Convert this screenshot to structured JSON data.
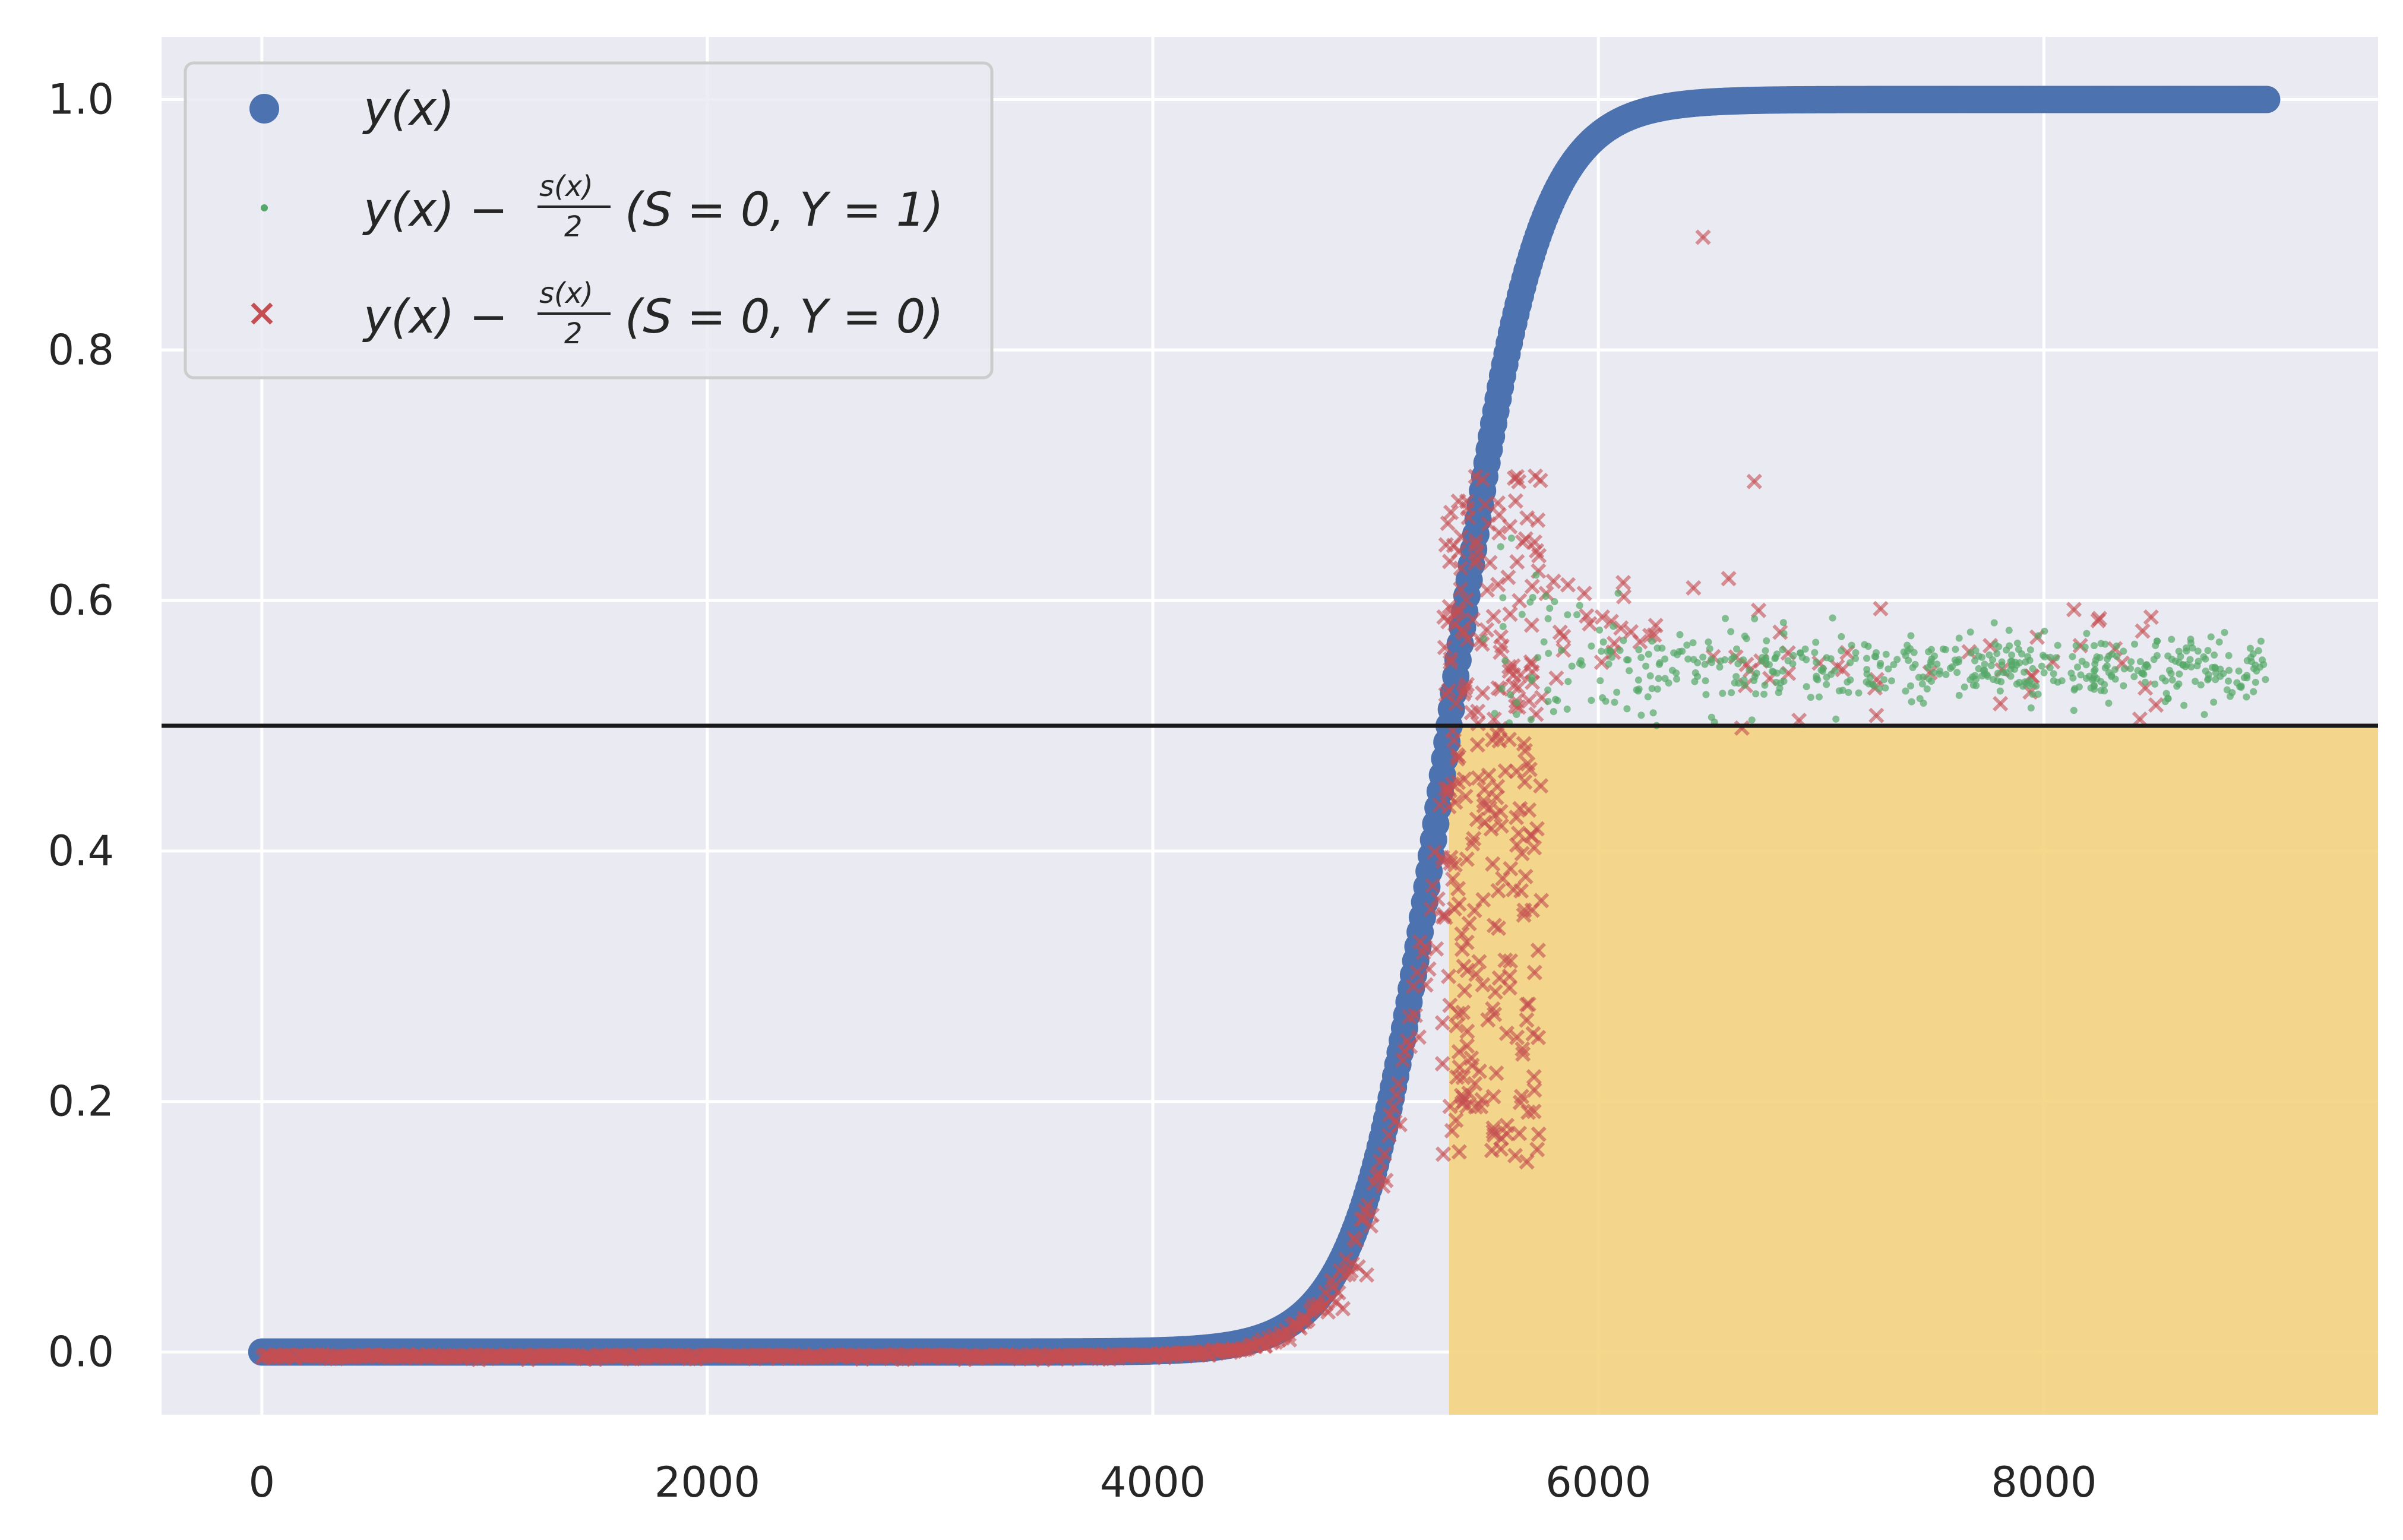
{
  "chart_data": {
    "type": "scatter",
    "title": "",
    "xlabel": "",
    "ylabel": "",
    "xlim": [
      -450,
      9500
    ],
    "ylim": [
      -0.05,
      1.05
    ],
    "x_ticks": [
      0,
      2000,
      4000,
      6000,
      8000
    ],
    "x_tick_labels": [
      "0",
      "2000",
      "4000",
      "6000",
      "8000"
    ],
    "y_ticks": [
      0.0,
      0.2,
      0.4,
      0.6,
      0.8,
      1.0
    ],
    "y_tick_labels": [
      "0.0",
      "0.2",
      "0.4",
      "0.6",
      "0.8",
      "1.0"
    ],
    "grid": true,
    "background": "#eaeaf2",
    "legend_position": "upper-left",
    "threshold_line": {
      "y": 0.5,
      "color": "#1a1a1a"
    },
    "shaded_region": {
      "x_start": 5330,
      "x_end": 9500,
      "y_start": -0.05,
      "y_end": 0.5,
      "color": "#f4d480"
    },
    "series": [
      {
        "name": "y(x)",
        "legend": {
          "main": "y(x)",
          "frac_num": "",
          "frac_den": "",
          "suffix": ""
        },
        "marker": "circle",
        "color": "#4c72b0",
        "function": "logistic",
        "x_range": [
          0,
          9000
        ],
        "midpoint": 5330,
        "sample_x": [
          0,
          1000,
          2000,
          3000,
          4000,
          4500,
          5000,
          5200,
          5330,
          5500,
          5700,
          6000,
          6500,
          7000,
          8000,
          9000
        ],
        "sample_y": [
          0.0,
          0.006,
          0.013,
          0.027,
          0.06,
          0.1,
          0.25,
          0.38,
          0.5,
          0.66,
          0.85,
          0.97,
          0.993,
          0.998,
          1.0,
          1.0
        ]
      },
      {
        "name": "y(x) − s(x)/2 (S = 0, Y = 1)",
        "legend": {
          "main": "y(x) −",
          "frac_num": "s(x)",
          "frac_den": "2",
          "suffix": "(S = 0, Y = 1)"
        },
        "marker": "dot",
        "color": "#55a868",
        "x_range": [
          5450,
          9000
        ],
        "y_band": [
          0.49,
          0.78
        ],
        "y_settle": 0.545
      },
      {
        "name": "y(x) − s(x)/2 (S = 0, Y = 0)",
        "legend": {
          "main": "y(x) −",
          "frac_num": "s(x)",
          "frac_den": "2",
          "suffix": "(S = 0, Y = 0)"
        },
        "marker": "x",
        "color": "#c44e52",
        "x_range": [
          0,
          8700
        ],
        "y_band": [
          -0.04,
          0.89
        ],
        "y_settle": 0.55
      }
    ]
  }
}
